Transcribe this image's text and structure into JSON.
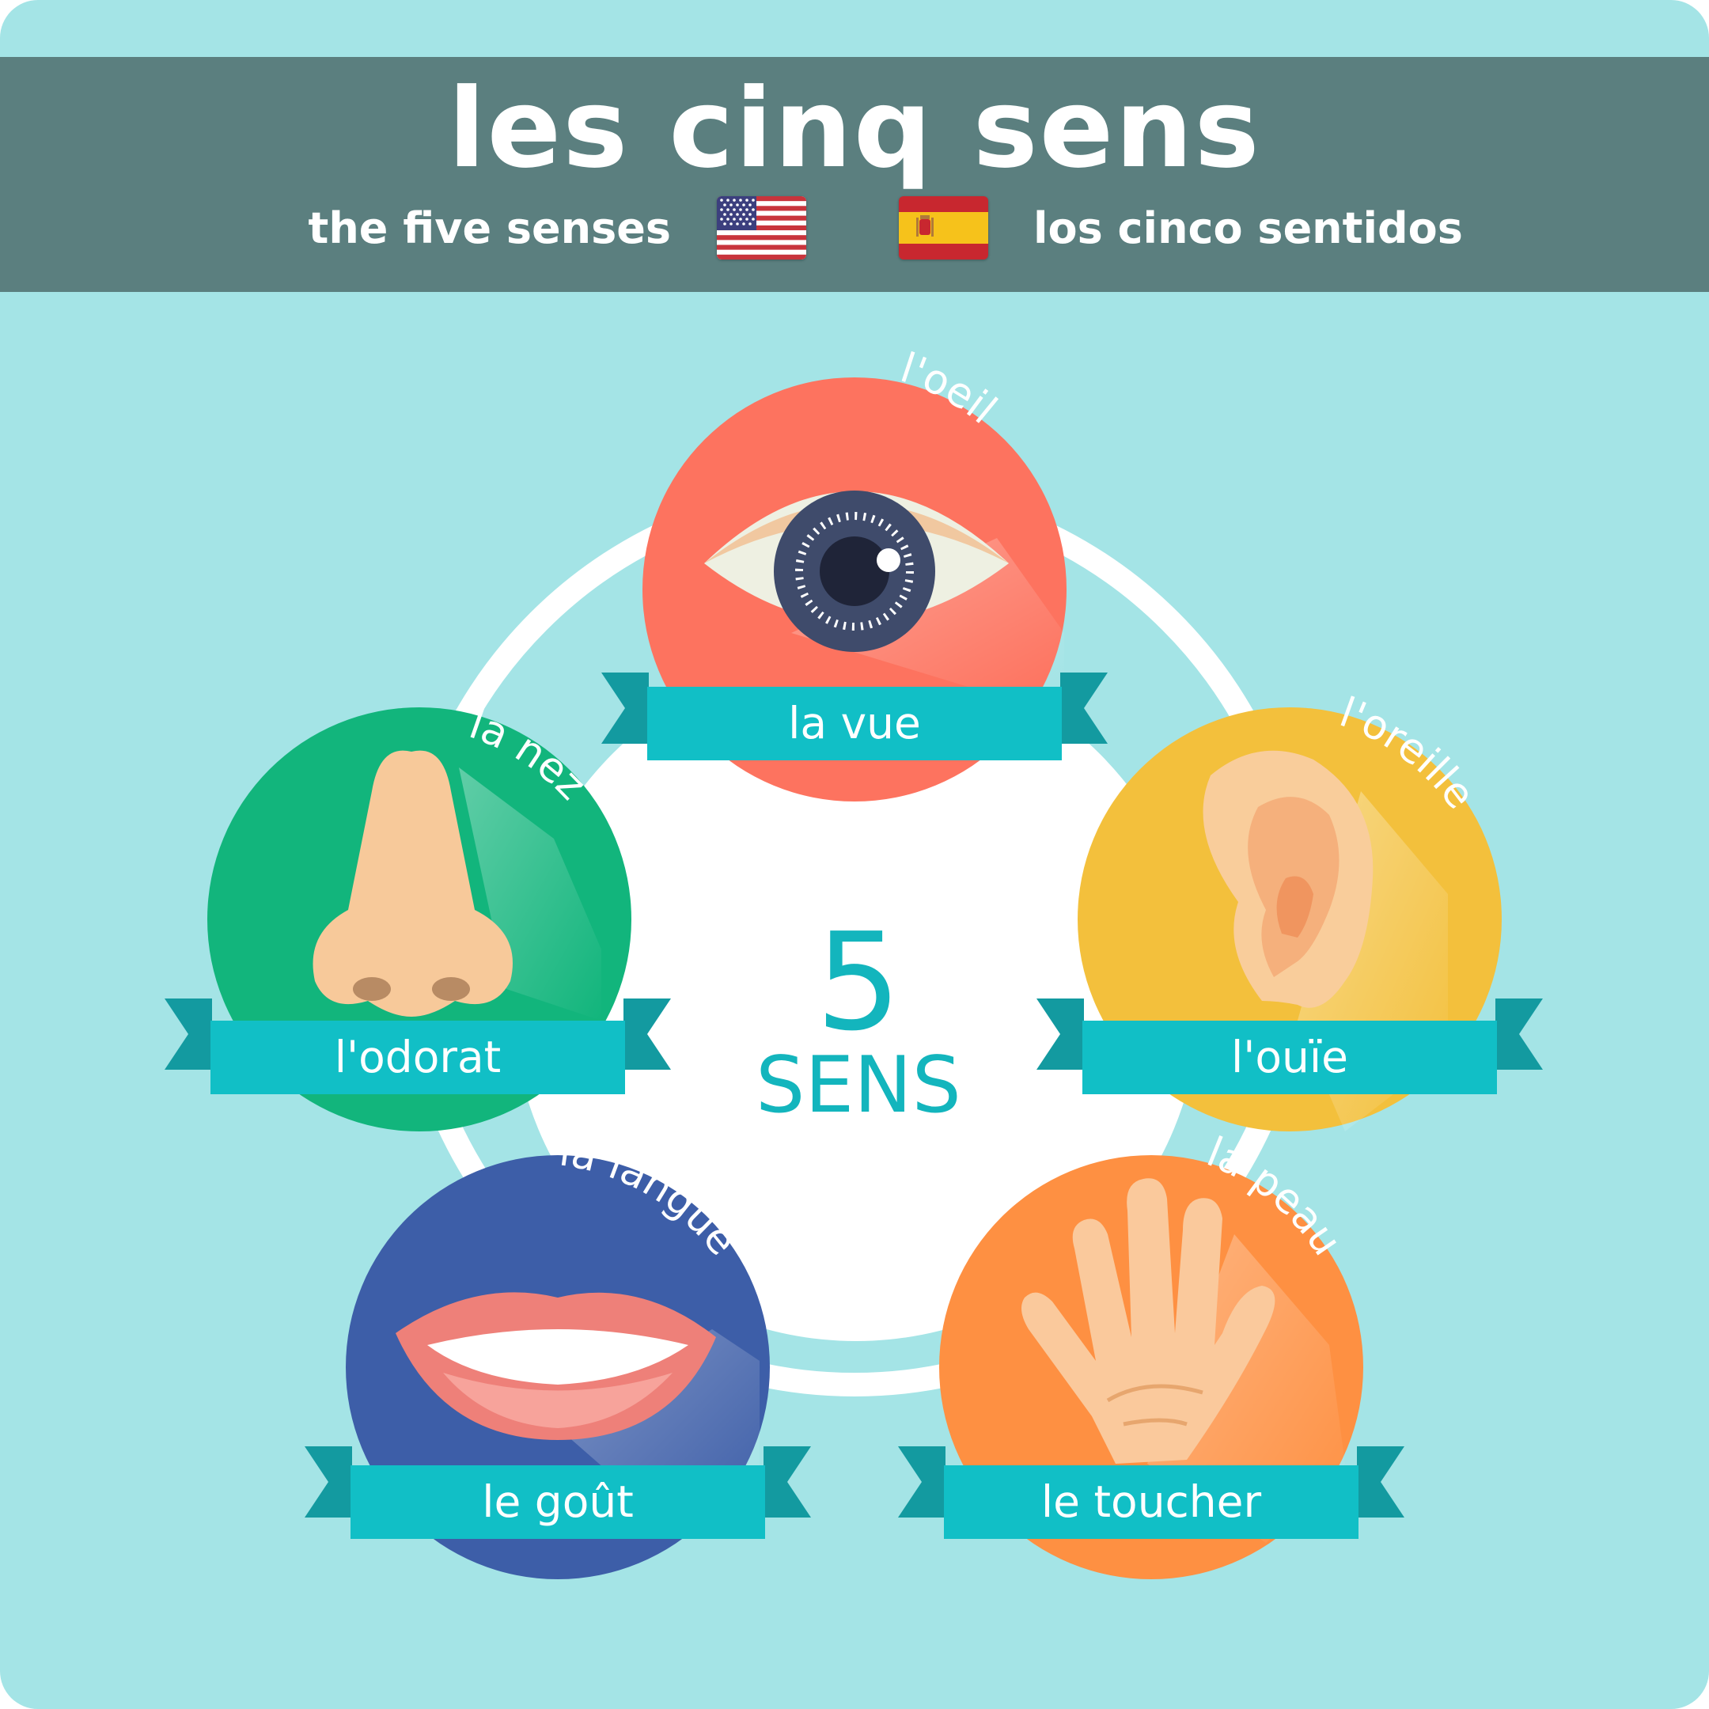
{
  "header": {
    "title": "les cinq sens",
    "subtitle_en": "the five senses",
    "subtitle_es": "los cinco sentidos",
    "flags": [
      "us-flag-icon",
      "spain-flag-icon"
    ]
  },
  "center": {
    "number": "5",
    "word": "SENS"
  },
  "senses": [
    {
      "sense": "la vue",
      "organ": "l'oeil",
      "icon": "eye-icon",
      "color": "#fd735f"
    },
    {
      "sense": "l'ouïe",
      "organ": "l'oreille",
      "icon": "ear-icon",
      "color": "#f3c03c"
    },
    {
      "sense": "le toucher",
      "organ": "la peau",
      "icon": "hand-icon",
      "color": "#fe9042"
    },
    {
      "sense": "le goût",
      "organ": "la langue",
      "icon": "mouth-icon",
      "color": "#3d5ea8"
    },
    {
      "sense": "l'odorat",
      "organ": "la nez",
      "icon": "nose-icon",
      "color": "#12b57c"
    }
  ],
  "colors": {
    "background": "#a4e4e6",
    "header": "#5b7f7f",
    "ribbon": "#11bfc6",
    "ribbon_dark": "#139aa0",
    "accent": "#13b5bd"
  }
}
